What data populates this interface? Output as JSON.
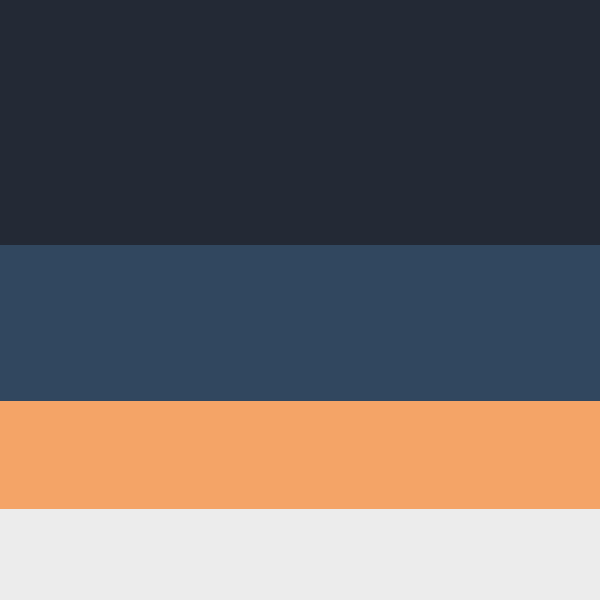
{
  "palette": {
    "swatches": [
      {
        "color": "#232a35"
      },
      {
        "color": "#31475f"
      },
      {
        "color": "#f4a466"
      },
      {
        "color": "#ececec"
      }
    ]
  }
}
